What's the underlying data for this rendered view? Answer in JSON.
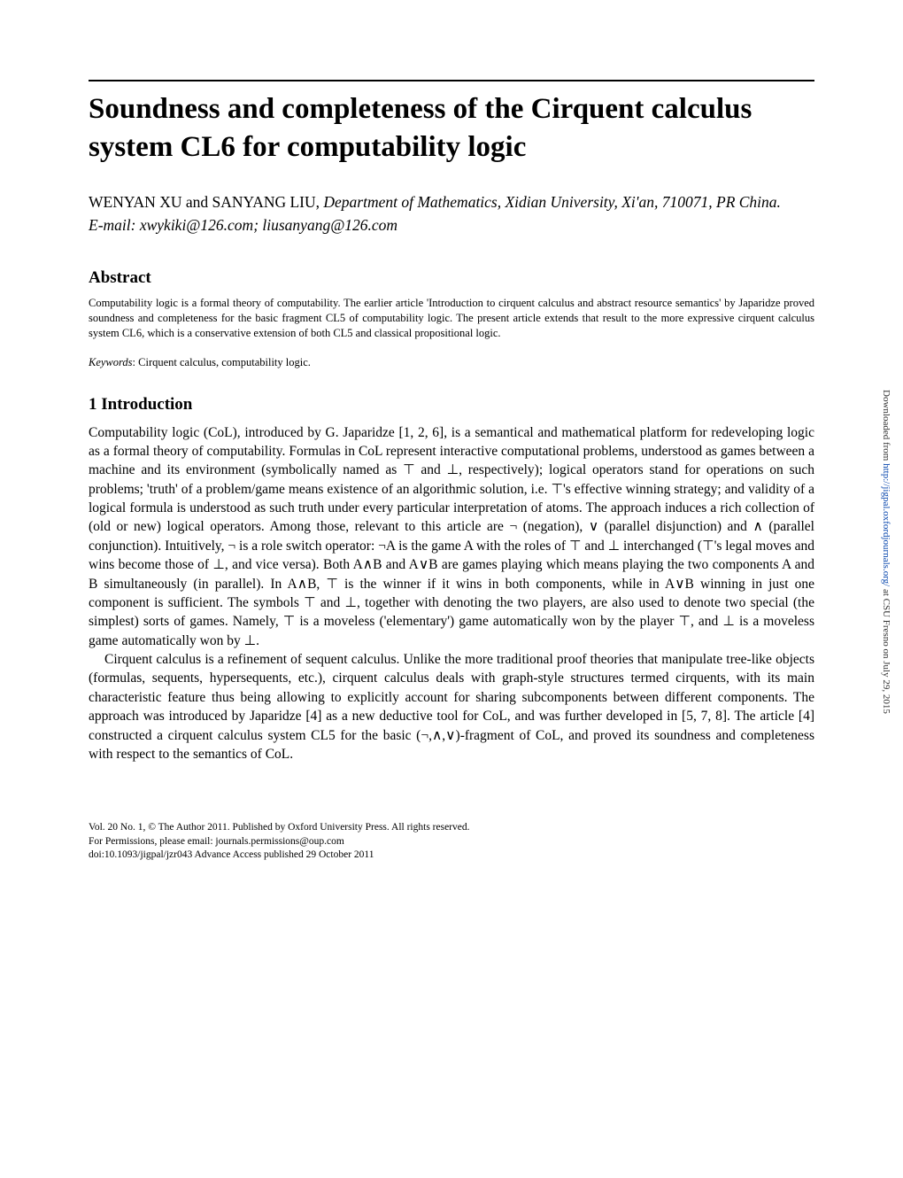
{
  "title": "Soundness and completeness of the Cirquent calculus system CL6 for computability logic",
  "authors_line": "WENYAN XU and SANYANG LIU, ",
  "affiliation": "Department of Mathematics, Xidian University, Xi'an, 710071, PR China.",
  "emails_label": "E-mail: ",
  "emails": "xwykiki@126.com; liusanyang@126.com",
  "abstract_heading": "Abstract",
  "abstract_text": "Computability logic is a formal theory of computability. The earlier article 'Introduction to cirquent calculus and abstract resource semantics' by Japaridze proved soundness and completeness for the basic fragment CL5 of computability logic. The present article extends that result to the more expressive cirquent calculus system CL6, which is a conservative extension of both CL5 and classical propositional logic.",
  "keywords_label": "Keywords",
  "keywords_text": ": Cirquent calculus, computability logic.",
  "section1_heading": "1   Introduction",
  "para1": "Computability logic (CoL), introduced by G. Japaridze [1, 2, 6], is a semantical and mathematical platform for redeveloping logic as a formal theory of computability. Formulas in CoL represent interactive computational problems, understood as games between a machine and its environment (symbolically named as ⊤ and ⊥, respectively); logical operators stand for operations on such problems; 'truth' of a problem/game means existence of an algorithmic solution, i.e. ⊤'s effective winning strategy; and validity of a logical formula is understood as such truth under every particular interpretation of atoms. The approach induces a rich collection of (old or new) logical operators. Among those, relevant to this article are ¬ (negation), ∨ (parallel disjunction) and ∧ (parallel conjunction). Intuitively, ¬ is a role switch operator: ¬A is the game A with the roles of ⊤ and ⊥ interchanged (⊤'s legal moves and wins become those of ⊥, and vice versa). Both A∧B and A∨B are games playing which means playing the two components A and B simultaneously (in parallel). In A∧B, ⊤ is the winner if it wins in both components, while in A∨B winning in just one component is sufficient. The symbols ⊤ and ⊥, together with denoting the two players, are also used to denote two special (the simplest) sorts of games. Namely, ⊤ is a moveless ('elementary') game automatically won by the player ⊤, and ⊥ is a moveless game automatically won by ⊥.",
  "para2": "Cirquent calculus is a refinement of sequent calculus. Unlike the more traditional proof theories that manipulate tree-like objects (formulas, sequents, hypersequents, etc.), cirquent calculus deals with graph-style structures termed cirquents, with its main characteristic feature thus being allowing to explicitly account for sharing subcomponents between different components. The approach was introduced by Japaridze [4] as a new deductive tool for CoL, and was further developed in [5, 7, 8]. The article [4] constructed a cirquent calculus system CL5 for the basic (¬,∧,∨)-fragment of CoL, and proved its soundness and completeness with respect to the semantics of CoL.",
  "footer_line1": "Vol. 20 No. 1, © The Author 2011. Published by Oxford University Press. All rights reserved.",
  "footer_line2": "For Permissions, please email: journals.permissions@oup.com",
  "footer_line3": "doi:10.1093/jigpal/jzr043    Advance Access published 29 October 2011",
  "sidebar_prefix": "Downloaded from ",
  "sidebar_link": "http://jigpal.oxfordjournals.org/",
  "sidebar_suffix": " at CSU Fresno on July 29, 2015",
  "colors": {
    "text": "#000000",
    "background": "#ffffff",
    "link": "#0645ad",
    "rule": "#000000"
  }
}
